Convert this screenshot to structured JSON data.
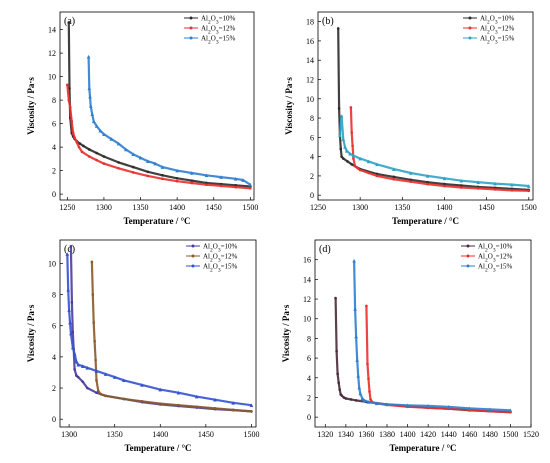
{
  "chart_data": [
    {
      "type": "line",
      "panel_label": "(a)",
      "xlabel": "Temperature / °C",
      "ylabel": "Viscosity / Pa·s",
      "xlim": [
        1240,
        1505
      ],
      "ylim": [
        -0.5,
        15.5
      ],
      "xticks": [
        1250,
        1300,
        1350,
        1400,
        1450,
        1500
      ],
      "yticks": [
        0,
        2,
        4,
        6,
        8,
        10,
        12,
        14
      ],
      "legend_position": "top-right",
      "series": [
        {
          "name": "Al2O3=10%",
          "color": "#2b2b2b",
          "x": [
            1252,
            1253,
            1254,
            1256,
            1258,
            1260,
            1263,
            1267,
            1272,
            1280,
            1290,
            1300,
            1320,
            1340,
            1360,
            1380,
            1400,
            1420,
            1440,
            1460,
            1480,
            1500
          ],
          "y": [
            14.6,
            9.0,
            6.5,
            5.2,
            4.9,
            4.7,
            4.5,
            4.3,
            4.1,
            3.8,
            3.5,
            3.2,
            2.7,
            2.3,
            1.9,
            1.6,
            1.35,
            1.15,
            0.95,
            0.85,
            0.75,
            0.65
          ]
        },
        {
          "name": "Al2O3=12%",
          "color": "#e8312f",
          "x": [
            1250,
            1252,
            1254,
            1256,
            1258,
            1260,
            1263,
            1266,
            1270,
            1280,
            1290,
            1300,
            1320,
            1340,
            1360,
            1380,
            1400,
            1420,
            1440,
            1460,
            1480,
            1500
          ],
          "y": [
            9.3,
            8.0,
            7.4,
            6.2,
            5.2,
            4.8,
            4.4,
            4.0,
            3.6,
            3.2,
            2.9,
            2.6,
            2.2,
            1.85,
            1.55,
            1.3,
            1.1,
            0.95,
            0.8,
            0.7,
            0.6,
            0.5
          ]
        },
        {
          "name": "Al2O3=15%",
          "color": "#2f7fd0",
          "x": [
            1279,
            1280,
            1281,
            1282,
            1284,
            1286,
            1290,
            1295,
            1300,
            1310,
            1320,
            1330,
            1340,
            1350,
            1360,
            1370,
            1380,
            1400,
            1420,
            1440,
            1460,
            1480,
            1490,
            1500
          ],
          "y": [
            11.7,
            9.0,
            8.3,
            7.5,
            6.8,
            6.2,
            5.8,
            5.4,
            5.1,
            4.7,
            4.3,
            3.8,
            3.4,
            3.1,
            2.8,
            2.6,
            2.3,
            2.0,
            1.8,
            1.6,
            1.45,
            1.3,
            1.2,
            0.8
          ]
        }
      ]
    },
    {
      "type": "line",
      "panel_label": "(b)",
      "xlabel": "Temperature / °C",
      "ylabel": "Viscosity / Pa·s",
      "xlim": [
        1250,
        1505
      ],
      "ylim": [
        -0.5,
        19.0
      ],
      "xticks": [
        1250,
        1300,
        1350,
        1400,
        1450,
        1500
      ],
      "yticks": [
        0,
        2,
        4,
        6,
        8,
        10,
        12,
        14,
        16,
        18
      ],
      "legend_position": "top-right",
      "series": [
        {
          "name": "Al2O3=10%",
          "color": "#2b2b2b",
          "x": [
            1274,
            1275,
            1276,
            1277,
            1278,
            1280,
            1285,
            1290,
            1300,
            1320,
            1340,
            1360,
            1380,
            1400,
            1420,
            1440,
            1460,
            1480,
            1500
          ],
          "y": [
            17.3,
            9.0,
            6.3,
            4.8,
            4.0,
            3.8,
            3.5,
            3.2,
            2.7,
            2.2,
            1.9,
            1.6,
            1.35,
            1.15,
            1.0,
            0.85,
            0.75,
            0.65,
            0.55
          ]
        },
        {
          "name": "Al2O3=12%",
          "color": "#e8312f",
          "x": [
            1289,
            1290,
            1291,
            1292,
            1294,
            1297,
            1300,
            1310,
            1320,
            1340,
            1360,
            1380,
            1400,
            1420,
            1440,
            1460,
            1480,
            1500
          ],
          "y": [
            9.1,
            6.5,
            5.1,
            3.8,
            3.0,
            2.8,
            2.6,
            2.3,
            2.0,
            1.65,
            1.4,
            1.15,
            0.95,
            0.8,
            0.7,
            0.6,
            0.5,
            0.45
          ]
        },
        {
          "name": "Al2O3=15%",
          "color": "#2fa3c4",
          "x": [
            1276,
            1278,
            1280,
            1282,
            1284,
            1288,
            1292,
            1300,
            1310,
            1320,
            1340,
            1360,
            1380,
            1400,
            1420,
            1440,
            1460,
            1480,
            1500
          ],
          "y": [
            6.2,
            8.2,
            5.8,
            5.0,
            4.6,
            4.3,
            4.1,
            3.8,
            3.5,
            3.2,
            2.7,
            2.3,
            2.0,
            1.75,
            1.5,
            1.35,
            1.2,
            1.1,
            0.95
          ]
        }
      ]
    },
    {
      "type": "line",
      "panel_label": "(c)",
      "xlabel": "Temperature / °C",
      "ylabel": "Viscosity / Pa·s",
      "xlim": [
        1290,
        1505
      ],
      "ylim": [
        -0.5,
        11.5
      ],
      "xticks": [
        1300,
        1350,
        1400,
        1450,
        1500
      ],
      "yticks": [
        0,
        2,
        4,
        6,
        8,
        10
      ],
      "legend_position": "top-right",
      "series": [
        {
          "name": "Al2O3=10%",
          "color": "#4a3c9a",
          "x": [
            1302,
            1303,
            1304,
            1305,
            1306,
            1308,
            1310,
            1315,
            1320,
            1330,
            1340,
            1360,
            1380,
            1400,
            1420,
            1440,
            1460,
            1480,
            1500
          ],
          "y": [
            11.1,
            7.5,
            5.6,
            4.5,
            3.2,
            2.8,
            2.7,
            2.4,
            2.0,
            1.7,
            1.5,
            1.3,
            1.1,
            0.95,
            0.85,
            0.75,
            0.65,
            0.58,
            0.5
          ]
        },
        {
          "name": "Al2O3=12%",
          "color": "#8a5a2a",
          "x": [
            1325,
            1326,
            1327,
            1328,
            1329,
            1330,
            1332,
            1335,
            1340,
            1360,
            1380,
            1400,
            1420,
            1440,
            1460,
            1480,
            1500
          ],
          "y": [
            10.1,
            8.0,
            6.2,
            5.0,
            3.8,
            2.5,
            1.8,
            1.6,
            1.5,
            1.3,
            1.15,
            1.0,
            0.9,
            0.8,
            0.7,
            0.6,
            0.5
          ]
        },
        {
          "name": "Al2O3=15%",
          "color": "#3452d0",
          "x": [
            1298,
            1299,
            1300,
            1301,
            1302,
            1304,
            1306,
            1308,
            1310,
            1315,
            1320,
            1330,
            1340,
            1350,
            1360,
            1380,
            1400,
            1420,
            1440,
            1460,
            1480,
            1500
          ],
          "y": [
            10.6,
            8.3,
            7.0,
            6.2,
            5.5,
            4.6,
            4.2,
            3.7,
            3.5,
            3.4,
            3.3,
            3.1,
            2.9,
            2.7,
            2.5,
            2.2,
            1.9,
            1.7,
            1.45,
            1.25,
            1.05,
            0.9
          ]
        }
      ]
    },
    {
      "type": "line",
      "panel_label": "(d)",
      "xlabel": "Temperature / °C",
      "ylabel": "Viscosity / Pa·s",
      "xlim": [
        1310,
        1520
      ],
      "ylim": [
        -1.0,
        18.0
      ],
      "xticks": [
        1320,
        1340,
        1360,
        1380,
        1400,
        1420,
        1440,
        1460,
        1480,
        1500,
        1520
      ],
      "yticks": [
        0,
        2,
        4,
        6,
        8,
        10,
        12,
        14,
        16
      ],
      "legend_position": "top-right",
      "series": [
        {
          "name": "Al2O3=10%",
          "color": "#4a2a3a",
          "x": [
            1330,
            1331,
            1332,
            1333,
            1334,
            1335,
            1336,
            1338,
            1340,
            1345,
            1350,
            1360,
            1380,
            1400,
            1420,
            1440,
            1460,
            1480,
            1500
          ],
          "y": [
            12.1,
            6.7,
            4.4,
            3.5,
            2.8,
            2.3,
            2.2,
            2.0,
            1.9,
            1.8,
            1.7,
            1.55,
            1.3,
            1.1,
            0.95,
            0.85,
            0.7,
            0.6,
            0.5
          ]
        },
        {
          "name": "Al2O3=12%",
          "color": "#e8312f",
          "x": [
            1360,
            1361,
            1362,
            1363,
            1364,
            1366,
            1370,
            1380,
            1400,
            1420,
            1440,
            1460,
            1480,
            1500
          ],
          "y": [
            11.3,
            5.4,
            3.9,
            2.6,
            1.8,
            1.5,
            1.4,
            1.25,
            1.05,
            0.95,
            0.85,
            0.75,
            0.6,
            0.5
          ]
        },
        {
          "name": "Al2O3=15%",
          "color": "#2f7fd0",
          "x": [
            1348,
            1349,
            1350,
            1351,
            1352,
            1353,
            1354,
            1356,
            1358,
            1362,
            1370,
            1380,
            1400,
            1420,
            1440,
            1460,
            1480,
            1500
          ],
          "y": [
            15.9,
            11.0,
            8.2,
            5.8,
            4.2,
            3.0,
            2.4,
            1.9,
            1.7,
            1.55,
            1.4,
            1.3,
            1.2,
            1.15,
            1.05,
            0.9,
            0.8,
            0.7
          ]
        }
      ]
    }
  ]
}
